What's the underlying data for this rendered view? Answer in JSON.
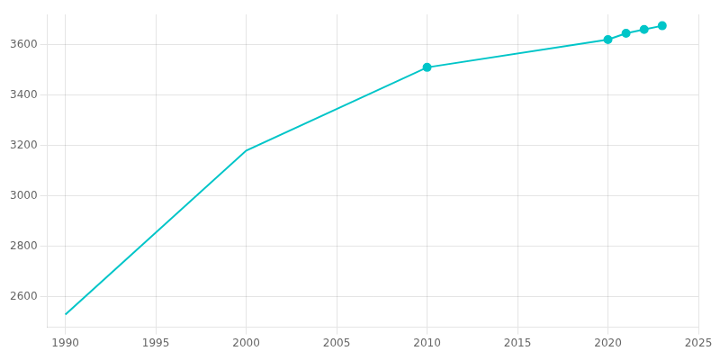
{
  "chart_data": {
    "type": "line",
    "series": [
      {
        "type": "line",
        "color": "#00C5C8",
        "line_style": "solid",
        "x": [
          1990,
          2000,
          2010,
          2020,
          2021,
          2022,
          2023
        ],
        "values": [
          2530,
          3180,
          3510,
          3620,
          3645,
          3660,
          3675
        ]
      },
      {
        "type": "scatter",
        "color": "#00C5C8",
        "marker": "circle",
        "x": [
          2010,
          2020,
          2021,
          2022,
          2023
        ],
        "values": [
          3510,
          3620,
          3645,
          3660,
          3675
        ]
      }
    ],
    "xlim": [
      1989,
      2025
    ],
    "ylim": [
      2480,
      3720
    ],
    "xticks": [
      1990,
      1995,
      2000,
      2005,
      2010,
      2015,
      2020,
      2025
    ],
    "yticks": [
      2600,
      2800,
      3000,
      3200,
      3400,
      3600
    ],
    "grid": true
  }
}
